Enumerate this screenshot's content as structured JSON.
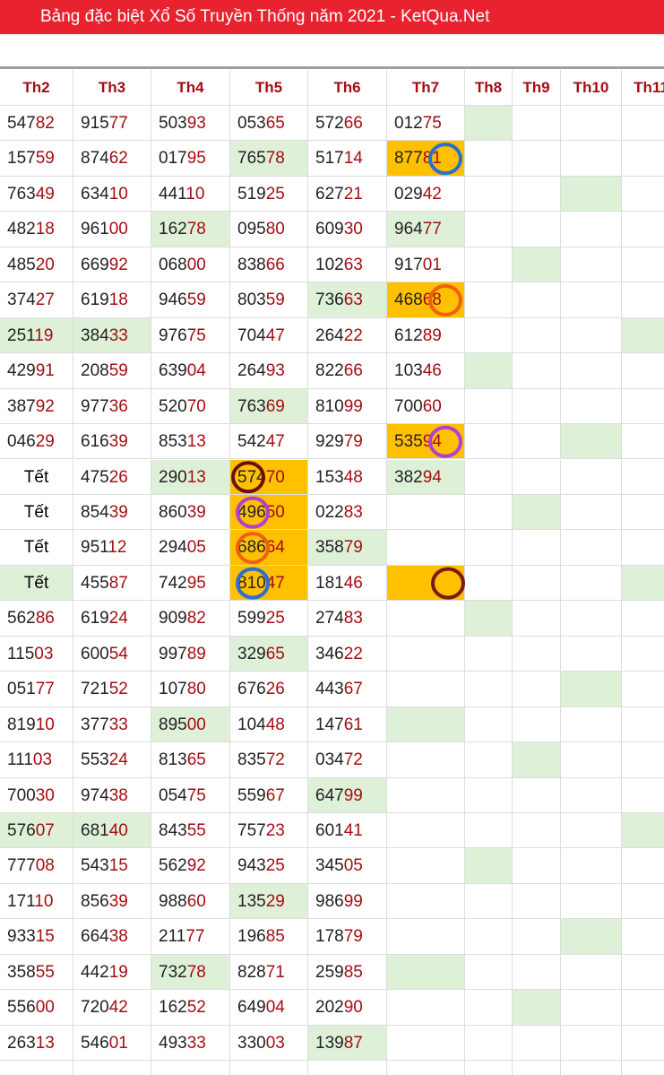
{
  "header": {
    "title": "Bảng đặc biệt Xổ Số Truyền Thống năm 2021 - KetQua.Net"
  },
  "table": {
    "headers": [
      "Th2",
      "Th3",
      "Th4",
      "Th5",
      "Th6",
      "Th7",
      "Th8",
      "Th9",
      "Th10",
      "Th11"
    ],
    "rows": [
      [
        [
          "547",
          "82"
        ],
        [
          "915",
          "77"
        ],
        [
          "503",
          "93"
        ],
        [
          "053",
          "65"
        ],
        [
          "572",
          "66"
        ],
        [
          "012",
          "75"
        ]
      ],
      [
        [
          "157",
          "59"
        ],
        [
          "874",
          "62"
        ],
        [
          "017",
          "95"
        ],
        [
          "765",
          "78"
        ],
        [
          "517",
          "14"
        ],
        [
          "877",
          "81"
        ]
      ],
      [
        [
          "763",
          "49"
        ],
        [
          "634",
          "10"
        ],
        [
          "441",
          "10"
        ],
        [
          "519",
          "25"
        ],
        [
          "627",
          "21"
        ],
        [
          "029",
          "42"
        ]
      ],
      [
        [
          "482",
          "18"
        ],
        [
          "961",
          "00"
        ],
        [
          "162",
          "78"
        ],
        [
          "095",
          "80"
        ],
        [
          "609",
          "30"
        ],
        [
          "964",
          "77"
        ]
      ],
      [
        [
          "485",
          "20"
        ],
        [
          "669",
          "92"
        ],
        [
          "068",
          "00"
        ],
        [
          "838",
          "66"
        ],
        [
          "102",
          "63"
        ],
        [
          "917",
          "01"
        ]
      ],
      [
        [
          "374",
          "27"
        ],
        [
          "619",
          "18"
        ],
        [
          "946",
          "59"
        ],
        [
          "803",
          "59"
        ],
        [
          "736",
          "63"
        ],
        [
          "468",
          "68"
        ]
      ],
      [
        [
          "251",
          "19"
        ],
        [
          "384",
          "33"
        ],
        [
          "976",
          "75"
        ],
        [
          "704",
          "47"
        ],
        [
          "264",
          "22"
        ],
        [
          "612",
          "89"
        ]
      ],
      [
        [
          "429",
          "91"
        ],
        [
          "208",
          "59"
        ],
        [
          "639",
          "04"
        ],
        [
          "264",
          "93"
        ],
        [
          "822",
          "66"
        ],
        [
          "103",
          "46"
        ]
      ],
      [
        [
          "387",
          "92"
        ],
        [
          "977",
          "36"
        ],
        [
          "520",
          "70"
        ],
        [
          "763",
          "69"
        ],
        [
          "810",
          "99"
        ],
        [
          "700",
          "60"
        ]
      ],
      [
        [
          "046",
          "29"
        ],
        [
          "616",
          "39"
        ],
        [
          "853",
          "13"
        ],
        [
          "542",
          "47"
        ],
        [
          "929",
          "79"
        ],
        [
          "535",
          "94"
        ]
      ],
      [
        "Tết",
        [
          "475",
          "26"
        ],
        [
          "290",
          "13"
        ],
        [
          "574",
          "70"
        ],
        [
          "153",
          "48"
        ],
        [
          "382",
          "94"
        ]
      ],
      [
        "Tết",
        [
          "854",
          "39"
        ],
        [
          "860",
          "39"
        ],
        [
          "496",
          "50"
        ],
        [
          "022",
          "83"
        ]
      ],
      [
        "Tết",
        [
          "951",
          "12"
        ],
        [
          "294",
          "05"
        ],
        [
          "686",
          "64"
        ],
        [
          "358",
          "79"
        ]
      ],
      [
        "Tết",
        [
          "455",
          "87"
        ],
        [
          "742",
          "95"
        ],
        [
          "810",
          "47"
        ],
        [
          "181",
          "46"
        ]
      ],
      [
        [
          "562",
          "86"
        ],
        [
          "619",
          "24"
        ],
        [
          "909",
          "82"
        ],
        [
          "599",
          "25"
        ],
        [
          "274",
          "83"
        ]
      ],
      [
        [
          "115",
          "03"
        ],
        [
          "600",
          "54"
        ],
        [
          "997",
          "89"
        ],
        [
          "329",
          "65"
        ],
        [
          "346",
          "22"
        ]
      ],
      [
        [
          "051",
          "77"
        ],
        [
          "721",
          "52"
        ],
        [
          "107",
          "80"
        ],
        [
          "676",
          "26"
        ],
        [
          "443",
          "67"
        ]
      ],
      [
        [
          "819",
          "10"
        ],
        [
          "377",
          "33"
        ],
        [
          "895",
          "00"
        ],
        [
          "104",
          "48"
        ],
        [
          "147",
          "61"
        ]
      ],
      [
        [
          "111",
          "03"
        ],
        [
          "553",
          "24"
        ],
        [
          "813",
          "65"
        ],
        [
          "835",
          "72"
        ],
        [
          "034",
          "72"
        ]
      ],
      [
        [
          "700",
          "30"
        ],
        [
          "974",
          "38"
        ],
        [
          "054",
          "75"
        ],
        [
          "559",
          "67"
        ],
        [
          "647",
          "99"
        ]
      ],
      [
        [
          "576",
          "07"
        ],
        [
          "681",
          "40"
        ],
        [
          "843",
          "55"
        ],
        [
          "757",
          "23"
        ],
        [
          "601",
          "41"
        ]
      ],
      [
        [
          "777",
          "08"
        ],
        [
          "543",
          "15"
        ],
        [
          "562",
          "92"
        ],
        [
          "943",
          "25"
        ],
        [
          "345",
          "05"
        ]
      ],
      [
        [
          "171",
          "10"
        ],
        [
          "856",
          "39"
        ],
        [
          "988",
          "60"
        ],
        [
          "135",
          "29"
        ],
        [
          "986",
          "99"
        ]
      ],
      [
        [
          "933",
          "15"
        ],
        [
          "664",
          "38"
        ],
        [
          "211",
          "77"
        ],
        [
          "196",
          "85"
        ],
        [
          "178",
          "79"
        ]
      ],
      [
        [
          "358",
          "55"
        ],
        [
          "442",
          "19"
        ],
        [
          "732",
          "78"
        ],
        [
          "828",
          "71"
        ],
        [
          "259",
          "85"
        ]
      ],
      [
        [
          "556",
          "00"
        ],
        [
          "720",
          "42"
        ],
        [
          "162",
          "52"
        ],
        [
          "649",
          "04"
        ],
        [
          "202",
          "90"
        ]
      ],
      [
        [
          "263",
          "13"
        ],
        [
          "546",
          "01"
        ],
        [
          "493",
          "33"
        ],
        [
          "330",
          "03"
        ],
        [
          "139",
          "87"
        ]
      ]
    ],
    "highlight": {
      "green": [
        [
          0,
          6
        ],
        [
          1,
          3
        ],
        [
          2,
          8
        ],
        [
          3,
          2
        ],
        [
          3,
          5
        ],
        [
          4,
          7
        ],
        [
          5,
          4
        ],
        [
          6,
          0
        ],
        [
          6,
          1
        ],
        [
          6,
          9
        ],
        [
          7,
          6
        ],
        [
          8,
          3
        ],
        [
          9,
          8
        ],
        [
          10,
          2
        ],
        [
          10,
          5
        ],
        [
          11,
          7
        ],
        [
          12,
          4
        ],
        [
          13,
          0
        ],
        [
          13,
          9
        ],
        [
          14,
          6
        ],
        [
          15,
          3
        ],
        [
          16,
          8
        ],
        [
          17,
          2
        ],
        [
          17,
          5
        ],
        [
          18,
          7
        ],
        [
          19,
          4
        ],
        [
          20,
          0
        ],
        [
          20,
          1
        ],
        [
          20,
          9
        ],
        [
          21,
          6
        ],
        [
          22,
          3
        ],
        [
          23,
          8
        ],
        [
          24,
          2
        ],
        [
          24,
          5
        ],
        [
          25,
          7
        ],
        [
          26,
          4
        ]
      ],
      "orange": [
        [
          1,
          5
        ],
        [
          5,
          5
        ],
        [
          9,
          5
        ],
        [
          10,
          3
        ],
        [
          11,
          3
        ],
        [
          12,
          3
        ],
        [
          13,
          3
        ],
        [
          13,
          5
        ]
      ]
    },
    "colors": {
      "green": "#dff0d8",
      "orange": "#ffc000"
    }
  }
}
